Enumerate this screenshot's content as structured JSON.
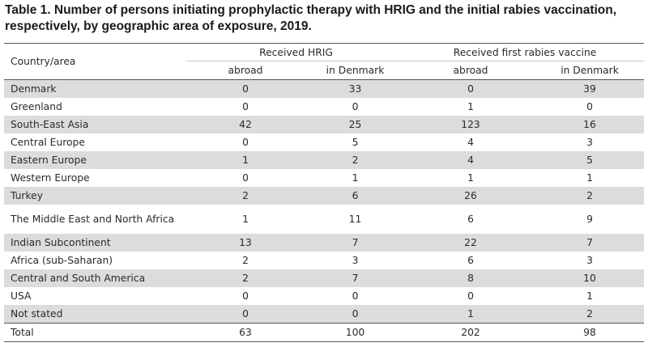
{
  "title": "Table 1. Number of persons initiating prophylactic therapy with HRIG and the initial rabies vaccination, respectively, by geographic area of exposure, 2019.",
  "header": {
    "country": "Country/area",
    "group1": "Received HRIG",
    "group2": "Received first rabies vaccine",
    "sub": [
      "abroad",
      "in Denmark",
      "abroad",
      "in Denmark"
    ]
  },
  "rows": [
    {
      "name": "Denmark",
      "values": [
        "0",
        "33",
        "0",
        "39"
      ]
    },
    {
      "name": "Greenland",
      "values": [
        "0",
        "0",
        "1",
        "0"
      ]
    },
    {
      "name": "South-East Asia",
      "values": [
        "42",
        "25",
        "123",
        "16"
      ]
    },
    {
      "name": "Central Europe",
      "values": [
        "0",
        "5",
        "4",
        "3"
      ]
    },
    {
      "name": "Eastern Europe",
      "values": [
        "1",
        "2",
        "4",
        "5"
      ]
    },
    {
      "name": "Western Europe",
      "values": [
        "0",
        "1",
        "1",
        "1"
      ]
    },
    {
      "name": "Turkey",
      "values": [
        "2",
        "6",
        "26",
        "2"
      ]
    },
    {
      "name": "The Middle East and North Africa",
      "values": [
        "1",
        "11",
        "6",
        "9"
      ]
    },
    {
      "name": "Indian Subcontinent",
      "values": [
        "13",
        "7",
        "22",
        "7"
      ]
    },
    {
      "name": "Africa (sub-Saharan)",
      "values": [
        "2",
        "3",
        "6",
        "3"
      ]
    },
    {
      "name": "Central and South America",
      "values": [
        "2",
        "7",
        "8",
        "10"
      ]
    },
    {
      "name": "USA",
      "values": [
        "0",
        "0",
        "0",
        "1"
      ]
    },
    {
      "name": "Not stated",
      "values": [
        "0",
        "0",
        "1",
        "2"
      ]
    }
  ],
  "total": {
    "name": "Total",
    "values": [
      "63",
      "100",
      "202",
      "98"
    ]
  }
}
